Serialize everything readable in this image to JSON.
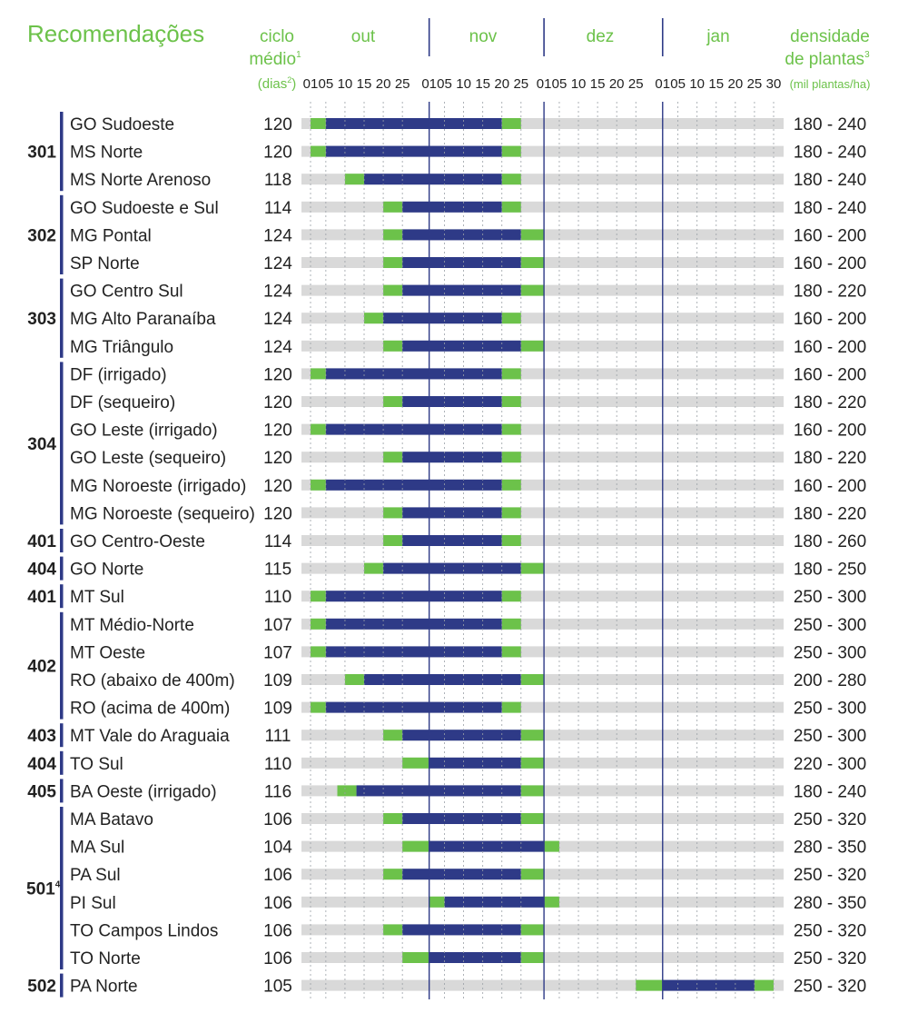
{
  "title": "Recomendações",
  "header": {
    "ciclo_line1": "ciclo",
    "ciclo_line2": "médio",
    "ciclo_sup": "1",
    "dias_pre": "(dias",
    "dias_sup": "2",
    "dias_post": ")",
    "densidade_line1": "densidade",
    "densidade_line2": "de plantas",
    "densidade_sup": "3",
    "densidade_line3": "(mil plantas/ha)"
  },
  "colors": {
    "accent_green": "#6cc24a",
    "navy": "#2e3a87",
    "track_gray": "#d9d9d9",
    "text": "#222222",
    "title_green": "#6cc24a"
  },
  "chart_data": {
    "type": "gantt",
    "title": "Recomendações",
    "months": [
      "out",
      "nov",
      "dez",
      "jan"
    ],
    "month_tick_labels": [
      [
        "01",
        "05",
        "10",
        "15",
        "20",
        "25"
      ],
      [
        "01",
        "05",
        "10",
        "15",
        "20",
        "25"
      ],
      [
        "01",
        "05",
        "10",
        "15",
        "20",
        "25"
      ],
      [
        "01",
        "05",
        "10",
        "15",
        "20",
        "25",
        "30"
      ]
    ],
    "groups": [
      {
        "label": "301",
        "sup": "",
        "rows": [
          0,
          2
        ]
      },
      {
        "label": "302",
        "sup": "",
        "rows": [
          3,
          5
        ]
      },
      {
        "label": "303",
        "sup": "",
        "rows": [
          6,
          8
        ]
      },
      {
        "label": "304",
        "sup": "",
        "rows": [
          9,
          14
        ]
      },
      {
        "label": "401",
        "sup": "",
        "rows": [
          15,
          15
        ]
      },
      {
        "label": "404",
        "sup": "",
        "rows": [
          16,
          16
        ]
      },
      {
        "label": "401",
        "sup": "",
        "rows": [
          17,
          17
        ]
      },
      {
        "label": "402",
        "sup": "",
        "rows": [
          18,
          21
        ]
      },
      {
        "label": "403",
        "sup": "",
        "rows": [
          22,
          22
        ]
      },
      {
        "label": "404",
        "sup": "",
        "rows": [
          23,
          23
        ]
      },
      {
        "label": "405",
        "sup": "",
        "rows": [
          24,
          24
        ]
      },
      {
        "label": "501",
        "sup": "4",
        "rows": [
          25,
          30
        ]
      },
      {
        "label": "502",
        "sup": "",
        "rows": [
          31,
          31
        ]
      }
    ],
    "rows": [
      {
        "region": "GO Sudoeste",
        "cycle": "120",
        "density": "180 - 240",
        "green_start": "out 01",
        "navy_start": "out 05",
        "navy_end": "nov 20",
        "green_end": "nov 25"
      },
      {
        "region": "MS Norte",
        "cycle": "120",
        "density": "180 - 240",
        "green_start": "out 01",
        "navy_start": "out 05",
        "navy_end": "nov 20",
        "green_end": "nov 25"
      },
      {
        "region": "MS Norte Arenoso",
        "cycle": "118",
        "density": "180 - 240",
        "green_start": "out 10",
        "navy_start": "out 15",
        "navy_end": "nov 20",
        "green_end": "nov 25"
      },
      {
        "region": "GO Sudoeste e Sul",
        "cycle": "114",
        "density": "180 - 240",
        "green_start": "out 20",
        "navy_start": "out 25",
        "navy_end": "nov 20",
        "green_end": "nov 25"
      },
      {
        "region": "MG Pontal",
        "cycle": "124",
        "density": "160 - 200",
        "green_start": "out 20",
        "navy_start": "out 25",
        "navy_end": "nov 25",
        "green_end": "dez 01"
      },
      {
        "region": "SP Norte",
        "cycle": "124",
        "density": "160 - 200",
        "green_start": "out 20",
        "navy_start": "out 25",
        "navy_end": "nov 25",
        "green_end": "dez 01"
      },
      {
        "region": "GO Centro Sul",
        "cycle": "124",
        "density": "180 - 220",
        "green_start": "out 20",
        "navy_start": "out 25",
        "navy_end": "nov 25",
        "green_end": "dez 01"
      },
      {
        "region": "MG Alto Paranaíba",
        "cycle": "124",
        "density": "160 - 200",
        "green_start": "out 15",
        "navy_start": "out 20",
        "navy_end": "nov 20",
        "green_end": "nov 25"
      },
      {
        "region": "MG Triângulo",
        "cycle": "124",
        "density": "160 - 200",
        "green_start": "out 20",
        "navy_start": "out 25",
        "navy_end": "nov 25",
        "green_end": "dez 01"
      },
      {
        "region": "DF (irrigado)",
        "cycle": "120",
        "density": "160 - 200",
        "green_start": "out 01",
        "navy_start": "out 05",
        "navy_end": "nov 20",
        "green_end": "nov 25"
      },
      {
        "region": "DF (sequeiro)",
        "cycle": "120",
        "density": "180 - 220",
        "green_start": "out 20",
        "navy_start": "out 25",
        "navy_end": "nov 20",
        "green_end": "nov 25"
      },
      {
        "region": "GO Leste (irrigado)",
        "cycle": "120",
        "density": "160 - 200",
        "green_start": "out 01",
        "navy_start": "out 05",
        "navy_end": "nov 20",
        "green_end": "nov 25"
      },
      {
        "region": "GO Leste (sequeiro)",
        "cycle": "120",
        "density": "180 - 220",
        "green_start": "out 20",
        "navy_start": "out 25",
        "navy_end": "nov 20",
        "green_end": "nov 25"
      },
      {
        "region": "MG Noroeste (irrigado)",
        "cycle": "120",
        "density": "160 - 200",
        "green_start": "out 01",
        "navy_start": "out 05",
        "navy_end": "nov 20",
        "green_end": "nov 25"
      },
      {
        "region": "MG Noroeste (sequeiro)",
        "cycle": "120",
        "density": "180 - 220",
        "green_start": "out 20",
        "navy_start": "out 25",
        "navy_end": "nov 20",
        "green_end": "nov 25"
      },
      {
        "region": "GO Centro-Oeste",
        "cycle": "114",
        "density": "180 - 260",
        "green_start": "out 20",
        "navy_start": "out 25",
        "navy_end": "nov 20",
        "green_end": "nov 25"
      },
      {
        "region": "GO Norte",
        "cycle": "115",
        "density": "180 - 250",
        "green_start": "out 15",
        "navy_start": "out 20",
        "navy_end": "nov 25",
        "green_end": "dez 01"
      },
      {
        "region": "MT Sul",
        "cycle": "110",
        "density": "250 - 300",
        "green_start": "out 01",
        "navy_start": "out 05",
        "navy_end": "nov 20",
        "green_end": "nov 25"
      },
      {
        "region": "MT Médio-Norte",
        "cycle": "107",
        "density": "250 - 300",
        "green_start": "out 01",
        "navy_start": "out 05",
        "navy_end": "nov 20",
        "green_end": "nov 25"
      },
      {
        "region": "MT Oeste",
        "cycle": "107",
        "density": "250 - 300",
        "green_start": "out 01",
        "navy_start": "out 05",
        "navy_end": "nov 20",
        "green_end": "nov 25"
      },
      {
        "region": "RO (abaixo de 400m)",
        "cycle": "109",
        "density": "200 - 280",
        "green_start": "out 10",
        "navy_start": "out 15",
        "navy_end": "nov 25",
        "green_end": "dez 01"
      },
      {
        "region": "RO (acima de 400m)",
        "cycle": "109",
        "density": "250 - 300",
        "green_start": "out 01",
        "navy_start": "out 05",
        "navy_end": "nov 20",
        "green_end": "nov 25"
      },
      {
        "region": "MT Vale do Araguaia",
        "cycle": "111",
        "density": "250 - 300",
        "green_start": "out 20",
        "navy_start": "out 25",
        "navy_end": "nov 25",
        "green_end": "dez 01"
      },
      {
        "region": "TO Sul",
        "cycle": "110",
        "density": "220 - 300",
        "green_start": "out 25",
        "navy_start": "nov 01",
        "navy_end": "nov 25",
        "green_end": "dez 01"
      },
      {
        "region": "BA Oeste (irrigado)",
        "cycle": "116",
        "density": "180 - 240",
        "green_start": "out 08",
        "navy_start": "out 13",
        "navy_end": "nov 25",
        "green_end": "dez 01"
      },
      {
        "region": "MA Batavo",
        "cycle": "106",
        "density": "250 - 320",
        "green_start": "out 20",
        "navy_start": "out 25",
        "navy_end": "nov 25",
        "green_end": "dez 01"
      },
      {
        "region": "MA Sul",
        "cycle": "104",
        "density": "280 - 350",
        "green_start": "out 25",
        "navy_start": "nov 01",
        "navy_end": "dez 01",
        "green_end": "dez 05"
      },
      {
        "region": "PA Sul",
        "cycle": "106",
        "density": "250 - 320",
        "green_start": "out 20",
        "navy_start": "out 25",
        "navy_end": "nov 25",
        "green_end": "dez 01"
      },
      {
        "region": "PI Sul",
        "cycle": "106",
        "density": "280 - 350",
        "green_start": "nov 01",
        "navy_start": "nov 05",
        "navy_end": "dez 01",
        "green_end": "dez 05"
      },
      {
        "region": "TO Campos Lindos",
        "cycle": "106",
        "density": "250 - 320",
        "green_start": "out 20",
        "navy_start": "out 25",
        "navy_end": "nov 25",
        "green_end": "dez 01"
      },
      {
        "region": "TO Norte",
        "cycle": "106",
        "density": "250 - 320",
        "green_start": "out 25",
        "navy_start": "nov 01",
        "navy_end": "nov 25",
        "green_end": "dez 01"
      },
      {
        "region": "PA Norte",
        "cycle": "105",
        "density": "250 - 320",
        "green_start": "dez 25",
        "navy_start": "jan 01",
        "navy_end": "jan 25",
        "green_end": "jan 30"
      }
    ]
  }
}
